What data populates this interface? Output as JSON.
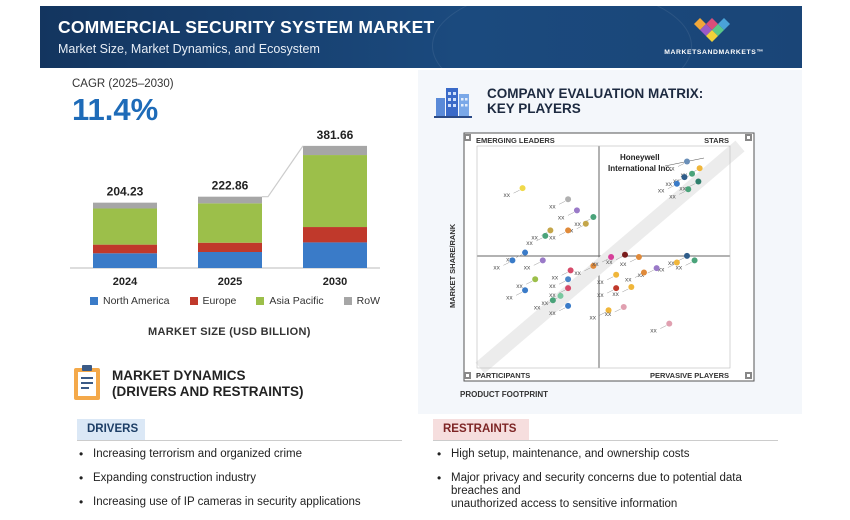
{
  "header": {
    "title": "COMMERCIAL SECURITY SYSTEM MARKET",
    "subtitle": "Market Size, Market Dynamics, and Ecosystem",
    "brand": "MARKETSANDMARKETS™"
  },
  "cagr": {
    "label": "CAGR (2025–2030)",
    "value": "11.4%"
  },
  "chart_data": {
    "type": "bar",
    "stacked": true,
    "categories": [
      "2024",
      "2025",
      "2030"
    ],
    "totals": [
      "204.23",
      "222.86",
      "381.66"
    ],
    "series": [
      {
        "name": "North America",
        "color": "#3a7bc8",
        "values": [
          46,
          50,
          80
        ]
      },
      {
        "name": "Europe",
        "color": "#c0392b",
        "values": [
          27,
          29,
          48
        ]
      },
      {
        "name": "Asia Pacific",
        "color": "#9cbf4a",
        "values": [
          113,
          123,
          225
        ]
      },
      {
        "name": "RoW",
        "color": "#a6a6a6",
        "values": [
          18.23,
          20.86,
          28.66
        ]
      }
    ],
    "xlabel": "MARKET SIZE (USD BILLION)",
    "ylim": [
      0,
      400
    ],
    "grid": false,
    "legend": "bottom"
  },
  "dynamics": {
    "title_line1": "MARKET DYNAMICS",
    "title_line2": "(DRIVERS AND RESTRAINTS)",
    "drivers_label": "DRIVERS",
    "drivers": [
      "Increasing terrorism and organized crime",
      "Expanding construction industry",
      "Increasing use of IP cameras in security applications"
    ],
    "restraints_label": "RESTRAINTS",
    "restraints": [
      "High setup, maintenance, and ownership costs",
      "Major privacy and security concerns due to potential data breaches and",
      "unauthorized access to sensitive information"
    ]
  },
  "matrix": {
    "title_line1": "COMPANY EVALUATION MATRIX:",
    "title_line2": "KEY PLAYERS",
    "quadrants": {
      "top_left": "EMERGING LEADERS",
      "top_right": "STARS",
      "bottom_left": "PARTICIPANTS",
      "bottom_right": "PERVASIVE PLAYERS"
    },
    "y_axis": "MARKET SHARE/RANK",
    "x_axis": "PRODUCT FOOTPRINT",
    "callout_line1": "Honeywell",
    "callout_line2": "International Inc.",
    "point_label": "xx",
    "points": [
      {
        "x": 8.3,
        "y": 9.3,
        "c": "#6a8fb8"
      },
      {
        "x": 8.8,
        "y": 9.0,
        "c": "#f0b63a"
      },
      {
        "x": 8.5,
        "y": 8.75,
        "c": "#4aa37a"
      },
      {
        "x": 8.2,
        "y": 8.6,
        "c": "#2f5d8a"
      },
      {
        "x": 8.75,
        "y": 8.4,
        "c": "#2e7d6b"
      },
      {
        "x": 7.9,
        "y": 8.3,
        "c": "#3a7bc8"
      },
      {
        "x": 8.35,
        "y": 8.05,
        "c": "#4aa37a"
      },
      {
        "x": 1.8,
        "y": 8.1,
        "c": "#f0d94a"
      },
      {
        "x": 3.6,
        "y": 7.6,
        "c": "#b0b0b0"
      },
      {
        "x": 3.95,
        "y": 7.1,
        "c": "#9a7ac8"
      },
      {
        "x": 4.6,
        "y": 6.8,
        "c": "#4aa37a"
      },
      {
        "x": 4.3,
        "y": 6.5,
        "c": "#c4a64a"
      },
      {
        "x": 2.9,
        "y": 6.2,
        "c": "#c4a64a"
      },
      {
        "x": 3.6,
        "y": 6.2,
        "c": "#e08a3a"
      },
      {
        "x": 2.7,
        "y": 5.95,
        "c": "#4aa37a"
      },
      {
        "x": 1.9,
        "y": 5.2,
        "c": "#3a7bc8"
      },
      {
        "x": 1.4,
        "y": 4.85,
        "c": "#3a7bc8"
      },
      {
        "x": 2.6,
        "y": 4.85,
        "c": "#9a7ac8"
      },
      {
        "x": 4.6,
        "y": 4.6,
        "c": "#e08a3a"
      },
      {
        "x": 3.7,
        "y": 4.4,
        "c": "#d64a6a"
      },
      {
        "x": 5.3,
        "y": 5.0,
        "c": "#d6409a"
      },
      {
        "x": 5.85,
        "y": 5.1,
        "c": "#7a1d1d"
      },
      {
        "x": 6.4,
        "y": 5.0,
        "c": "#e08a3a"
      },
      {
        "x": 8.3,
        "y": 5.05,
        "c": "#2f5d8a"
      },
      {
        "x": 8.6,
        "y": 4.85,
        "c": "#4aa37a"
      },
      {
        "x": 7.9,
        "y": 4.75,
        "c": "#f0b63a"
      },
      {
        "x": 7.1,
        "y": 4.5,
        "c": "#9a7ac8"
      },
      {
        "x": 2.3,
        "y": 4.0,
        "c": "#9cbf4a"
      },
      {
        "x": 3.6,
        "y": 4.0,
        "c": "#4a86c8"
      },
      {
        "x": 5.5,
        "y": 4.2,
        "c": "#f0b63a"
      },
      {
        "x": 5.5,
        "y": 3.6,
        "c": "#c0392b"
      },
      {
        "x": 6.1,
        "y": 3.65,
        "c": "#f0b63a"
      },
      {
        "x": 6.6,
        "y": 4.3,
        "c": "#e08a3a"
      },
      {
        "x": 1.9,
        "y": 3.5,
        "c": "#3a7bc8"
      },
      {
        "x": 3.6,
        "y": 3.6,
        "c": "#d64a6a"
      },
      {
        "x": 3.3,
        "y": 3.25,
        "c": "#7ac8a0"
      },
      {
        "x": 3.0,
        "y": 3.05,
        "c": "#4aa37a"
      },
      {
        "x": 3.6,
        "y": 2.8,
        "c": "#3a7bc8"
      },
      {
        "x": 5.2,
        "y": 2.6,
        "c": "#f0b63a"
      },
      {
        "x": 5.8,
        "y": 2.75,
        "c": "#e0a0b0"
      },
      {
        "x": 7.6,
        "y": 2.0,
        "c": "#e0a0b0"
      }
    ]
  }
}
